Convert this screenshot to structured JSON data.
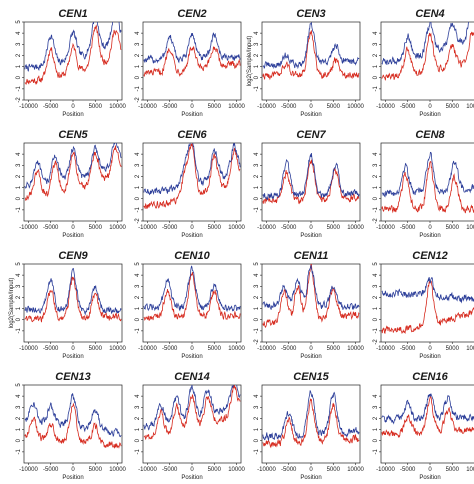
{
  "chart_data": {
    "type": "line",
    "layout": "4x4 small multiples",
    "xlabel": "Position",
    "ylabel": "log2(Sample/Input)",
    "xlim": [
      -11000,
      11000
    ],
    "ylim": [
      -2,
      5
    ],
    "x_ticks": [
      -10000,
      -5000,
      0,
      5000,
      10000
    ],
    "y_ticks": [
      -2,
      -1,
      0,
      1,
      2,
      3,
      4,
      5
    ],
    "series_colors": [
      "#2c3e99",
      "#d62a1e"
    ],
    "panels": [
      {
        "title": "CEN1",
        "ylabel_shown": false,
        "y_ticks": [
          -2,
          -1,
          0,
          1,
          2,
          3,
          4,
          5
        ],
        "peaks_x": [
          -5000,
          0,
          5000,
          9500
        ],
        "blue": {
          "baseline": 0.9,
          "end": 3.4,
          "peaks": [
            3.5,
            3.2,
            4.0,
            3.8
          ]
        },
        "red": {
          "baseline": -0.3,
          "end": 2.0,
          "peaks": [
            2.3,
            2.0,
            3.1,
            2.2
          ]
        }
      },
      {
        "title": "CEN2",
        "ylabel_shown": false,
        "y_ticks": [
          -2,
          -1,
          0,
          1,
          2,
          3,
          4
        ],
        "peaks_x": [
          -5000,
          0,
          5000
        ],
        "blue": {
          "baseline": 1.6,
          "end": 1.9,
          "peaks": [
            3.6,
            3.8,
            3.7
          ]
        },
        "red": {
          "baseline": 0.4,
          "end": 1.3,
          "peaks": [
            2.6,
            2.4,
            2.2
          ]
        }
      },
      {
        "title": "CEN3",
        "ylabel_shown": true,
        "y_ticks": [
          -1,
          0,
          1,
          2,
          3,
          4
        ],
        "peaks_x": [
          -5500,
          0,
          5500
        ],
        "blue": {
          "baseline": 1.1,
          "end": 1.6,
          "peaks": [
            1.9,
            4.6,
            2.6
          ]
        },
        "red": {
          "baseline": 0.2,
          "end": 0.3,
          "peaks": [
            1.2,
            4.1,
            1.5
          ]
        }
      },
      {
        "title": "CEN4",
        "ylabel_shown": false,
        "y_ticks": [
          -1,
          0,
          1,
          2,
          3,
          4
        ],
        "peaks_x": [
          -5000,
          0,
          5000,
          9500
        ],
        "blue": {
          "baseline": 1.4,
          "end": 3.9,
          "peaks": [
            3.4,
            4.0,
            3.2,
            4.0
          ]
        },
        "red": {
          "baseline": 0.0,
          "end": 1.6,
          "peaks": [
            2.3,
            3.3,
            1.8,
            2.6
          ]
        }
      },
      {
        "title": "CEN5",
        "ylabel_shown": false,
        "y_ticks": [
          -1,
          0,
          1,
          2,
          3,
          4
        ],
        "peaks_x": [
          -8000,
          -4000,
          0,
          5000,
          9500
        ],
        "blue": {
          "baseline": 1.2,
          "end": 3.1,
          "peaks": [
            3.1,
            3.6,
            3.9,
            3.3,
            3.4
          ]
        },
        "red": {
          "baseline": 0.1,
          "end": 2.3,
          "peaks": [
            2.3,
            2.7,
            3.3,
            2.7,
            2.6
          ]
        }
      },
      {
        "title": "CEN6",
        "ylabel_shown": false,
        "y_ticks": [
          -2,
          -1,
          0,
          1,
          2,
          3,
          4
        ],
        "peaks_x": [
          -1500,
          0,
          5000,
          9500
        ],
        "blue": {
          "baseline": 0.6,
          "end": 2.5,
          "peaks": [
            2.6,
            4.2,
            3.2,
            3.0
          ]
        },
        "red": {
          "baseline": -0.6,
          "end": 1.6,
          "peaks": [
            1.6,
            3.7,
            2.5,
            2.2
          ]
        }
      },
      {
        "title": "CEN7",
        "ylabel_shown": false,
        "y_ticks": [
          -1,
          0,
          1,
          2,
          3,
          4
        ],
        "peaks_x": [
          -5500,
          0,
          5500
        ],
        "blue": {
          "baseline": 0.3,
          "end": 0.5,
          "peaks": [
            3.1,
            3.9,
            3.0
          ]
        },
        "red": {
          "baseline": -0.2,
          "end": 0.1,
          "peaks": [
            2.3,
            3.4,
            2.4
          ]
        }
      },
      {
        "title": "CEN8",
        "ylabel_shown": false,
        "y_ticks": [
          -2,
          -1,
          0,
          1,
          2,
          3,
          4
        ],
        "peaks_x": [
          -5500,
          0,
          5500
        ],
        "blue": {
          "baseline": 0.5,
          "end": 1.0,
          "peaks": [
            2.9,
            3.8,
            2.9
          ]
        },
        "red": {
          "baseline": -0.9,
          "end": -1.0,
          "peaks": [
            2.2,
            3.2,
            2.0
          ]
        }
      },
      {
        "title": "CEN9",
        "ylabel_shown": true,
        "y_ticks": [
          -1,
          0,
          1,
          2,
          3,
          4,
          5
        ],
        "peaks_x": [
          -5000,
          0,
          5000
        ],
        "blue": {
          "baseline": 0.9,
          "end": 0.8,
          "peaks": [
            3.6,
            4.2,
            3.0
          ]
        },
        "red": {
          "baseline": 0.0,
          "end": 0.3,
          "peaks": [
            2.6,
            3.6,
            2.1
          ]
        }
      },
      {
        "title": "CEN10",
        "ylabel_shown": false,
        "y_ticks": [
          -1,
          0,
          1,
          2,
          3,
          4,
          5
        ],
        "peaks_x": [
          -5500,
          0,
          5000
        ],
        "blue": {
          "baseline": 1.2,
          "end": 1.0,
          "peaks": [
            3.6,
            4.8,
            3.2
          ]
        },
        "red": {
          "baseline": 0.2,
          "end": 0.4,
          "peaks": [
            2.6,
            4.1,
            2.4
          ]
        }
      },
      {
        "title": "CEN11",
        "ylabel_shown": false,
        "y_ticks": [
          -2,
          -1,
          0,
          1,
          2,
          3,
          4,
          5
        ],
        "peaks_x": [
          -6000,
          -3000,
          0,
          5000
        ],
        "blue": {
          "baseline": 1.3,
          "end": 1.1,
          "peaks": [
            3.1,
            3.4,
            4.9,
            3.0
          ]
        },
        "red": {
          "baseline": -0.4,
          "end": 0.5,
          "peaks": [
            2.4,
            2.7,
            4.4,
            2.3
          ]
        }
      },
      {
        "title": "CEN12",
        "ylabel_shown": false,
        "y_ticks": [
          -2,
          -1,
          0,
          1,
          2,
          3,
          4,
          5
        ],
        "peaks_x": [
          0
        ],
        "blue": {
          "baseline": 2.4,
          "end": 1.7,
          "peaks": [
            3.9
          ]
        },
        "red": {
          "baseline": -1.0,
          "end": 0.8,
          "peaks": [
            2.7
          ]
        }
      },
      {
        "title": "CEN13",
        "ylabel_shown": false,
        "y_ticks": [
          -1,
          0,
          1,
          2,
          3,
          4,
          5
        ],
        "peaks_x": [
          -9000,
          -5000,
          0,
          5000
        ],
        "blue": {
          "baseline": 1.7,
          "end": 0.6,
          "peaks": [
            3.5,
            3.2,
            4.3,
            3.4
          ]
        },
        "red": {
          "baseline": 0.2,
          "end": -0.5,
          "peaks": [
            2.0,
            1.5,
            3.3,
            1.7
          ]
        }
      },
      {
        "title": "CEN14",
        "ylabel_shown": false,
        "y_ticks": [
          -1,
          0,
          1,
          2,
          3,
          4
        ],
        "peaks_x": [
          -7000,
          -3500,
          0,
          3500,
          9500
        ],
        "blue": {
          "baseline": 1.3,
          "end": 3.4,
          "peaks": [
            3.1,
            3.4,
            4.1,
            3.5,
            3.4
          ]
        },
        "red": {
          "baseline": 0.2,
          "end": 2.6,
          "peaks": [
            2.3,
            2.6,
            3.3,
            2.7,
            2.6
          ]
        }
      },
      {
        "title": "CEN15",
        "ylabel_shown": false,
        "y_ticks": [
          -1,
          0,
          1,
          2,
          3,
          4
        ],
        "peaks_x": [
          -5000,
          0,
          5000
        ],
        "blue": {
          "baseline": 0.4,
          "end": 0.9,
          "peaks": [
            2.5,
            4.2,
            3.8
          ]
        },
        "red": {
          "baseline": -0.3,
          "end": 0.2,
          "peaks": [
            1.8,
            3.3,
            2.9
          ]
        }
      },
      {
        "title": "CEN16",
        "ylabel_shown": false,
        "y_ticks": [
          -1,
          0,
          1,
          2,
          3,
          4
        ],
        "peaks_x": [
          -5000,
          0,
          4000
        ],
        "blue": {
          "baseline": 1.9,
          "end": 2.1,
          "peaks": [
            3.4,
            4.1,
            3.6
          ]
        },
        "red": {
          "baseline": 0.6,
          "end": 1.0,
          "peaks": [
            2.1,
            3.5,
            2.6
          ]
        }
      }
    ]
  }
}
